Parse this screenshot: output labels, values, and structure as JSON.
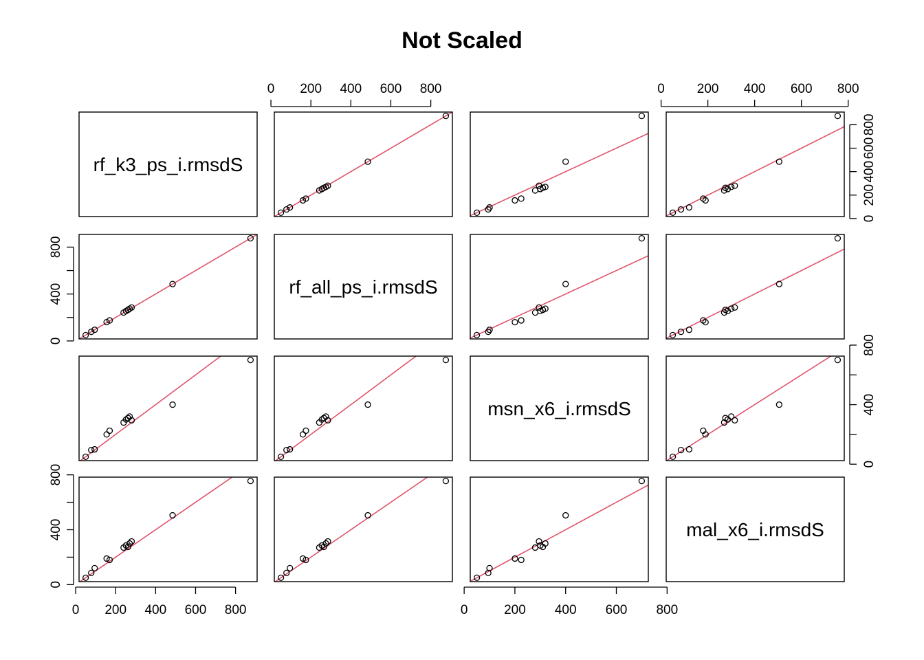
{
  "chart_data": {
    "type": "scatter",
    "title": "Not Scaled",
    "variables": [
      "rf_k3_ps_i.rmsdS",
      "rf_all_ps_i.rmsdS",
      "msn_x6_i.rmsdS",
      "mal_x6_i.rmsdS"
    ],
    "ticks": [
      [
        0,
        200,
        400,
        600,
        800
      ],
      [
        0,
        400,
        800
      ],
      [
        0,
        400,
        800
      ],
      [
        0,
        400,
        800
      ]
    ],
    "x_ticks": [
      [
        0,
        200,
        400,
        600,
        800
      ],
      [
        0,
        200,
        400,
        600,
        800
      ],
      [
        0,
        200,
        400,
        600,
        800
      ],
      [
        0,
        200,
        400,
        600,
        800
      ]
    ],
    "reference_line": "y = x",
    "reference_line_color": "#DF536B",
    "point_color": "#000000",
    "observations": [
      [
        50,
        50,
        50,
        50
      ],
      [
        78,
        78,
        95,
        85
      ],
      [
        95,
        95,
        100,
        120
      ],
      [
        155,
        160,
        200,
        190
      ],
      [
        170,
        175,
        225,
        180
      ],
      [
        240,
        242,
        280,
        270
      ],
      [
        252,
        255,
        300,
        285
      ],
      [
        262,
        265,
        310,
        275
      ],
      [
        270,
        275,
        320,
        300
      ],
      [
        280,
        285,
        295,
        315
      ],
      [
        485,
        485,
        400,
        505
      ],
      [
        875,
        875,
        700,
        755
      ]
    ]
  }
}
